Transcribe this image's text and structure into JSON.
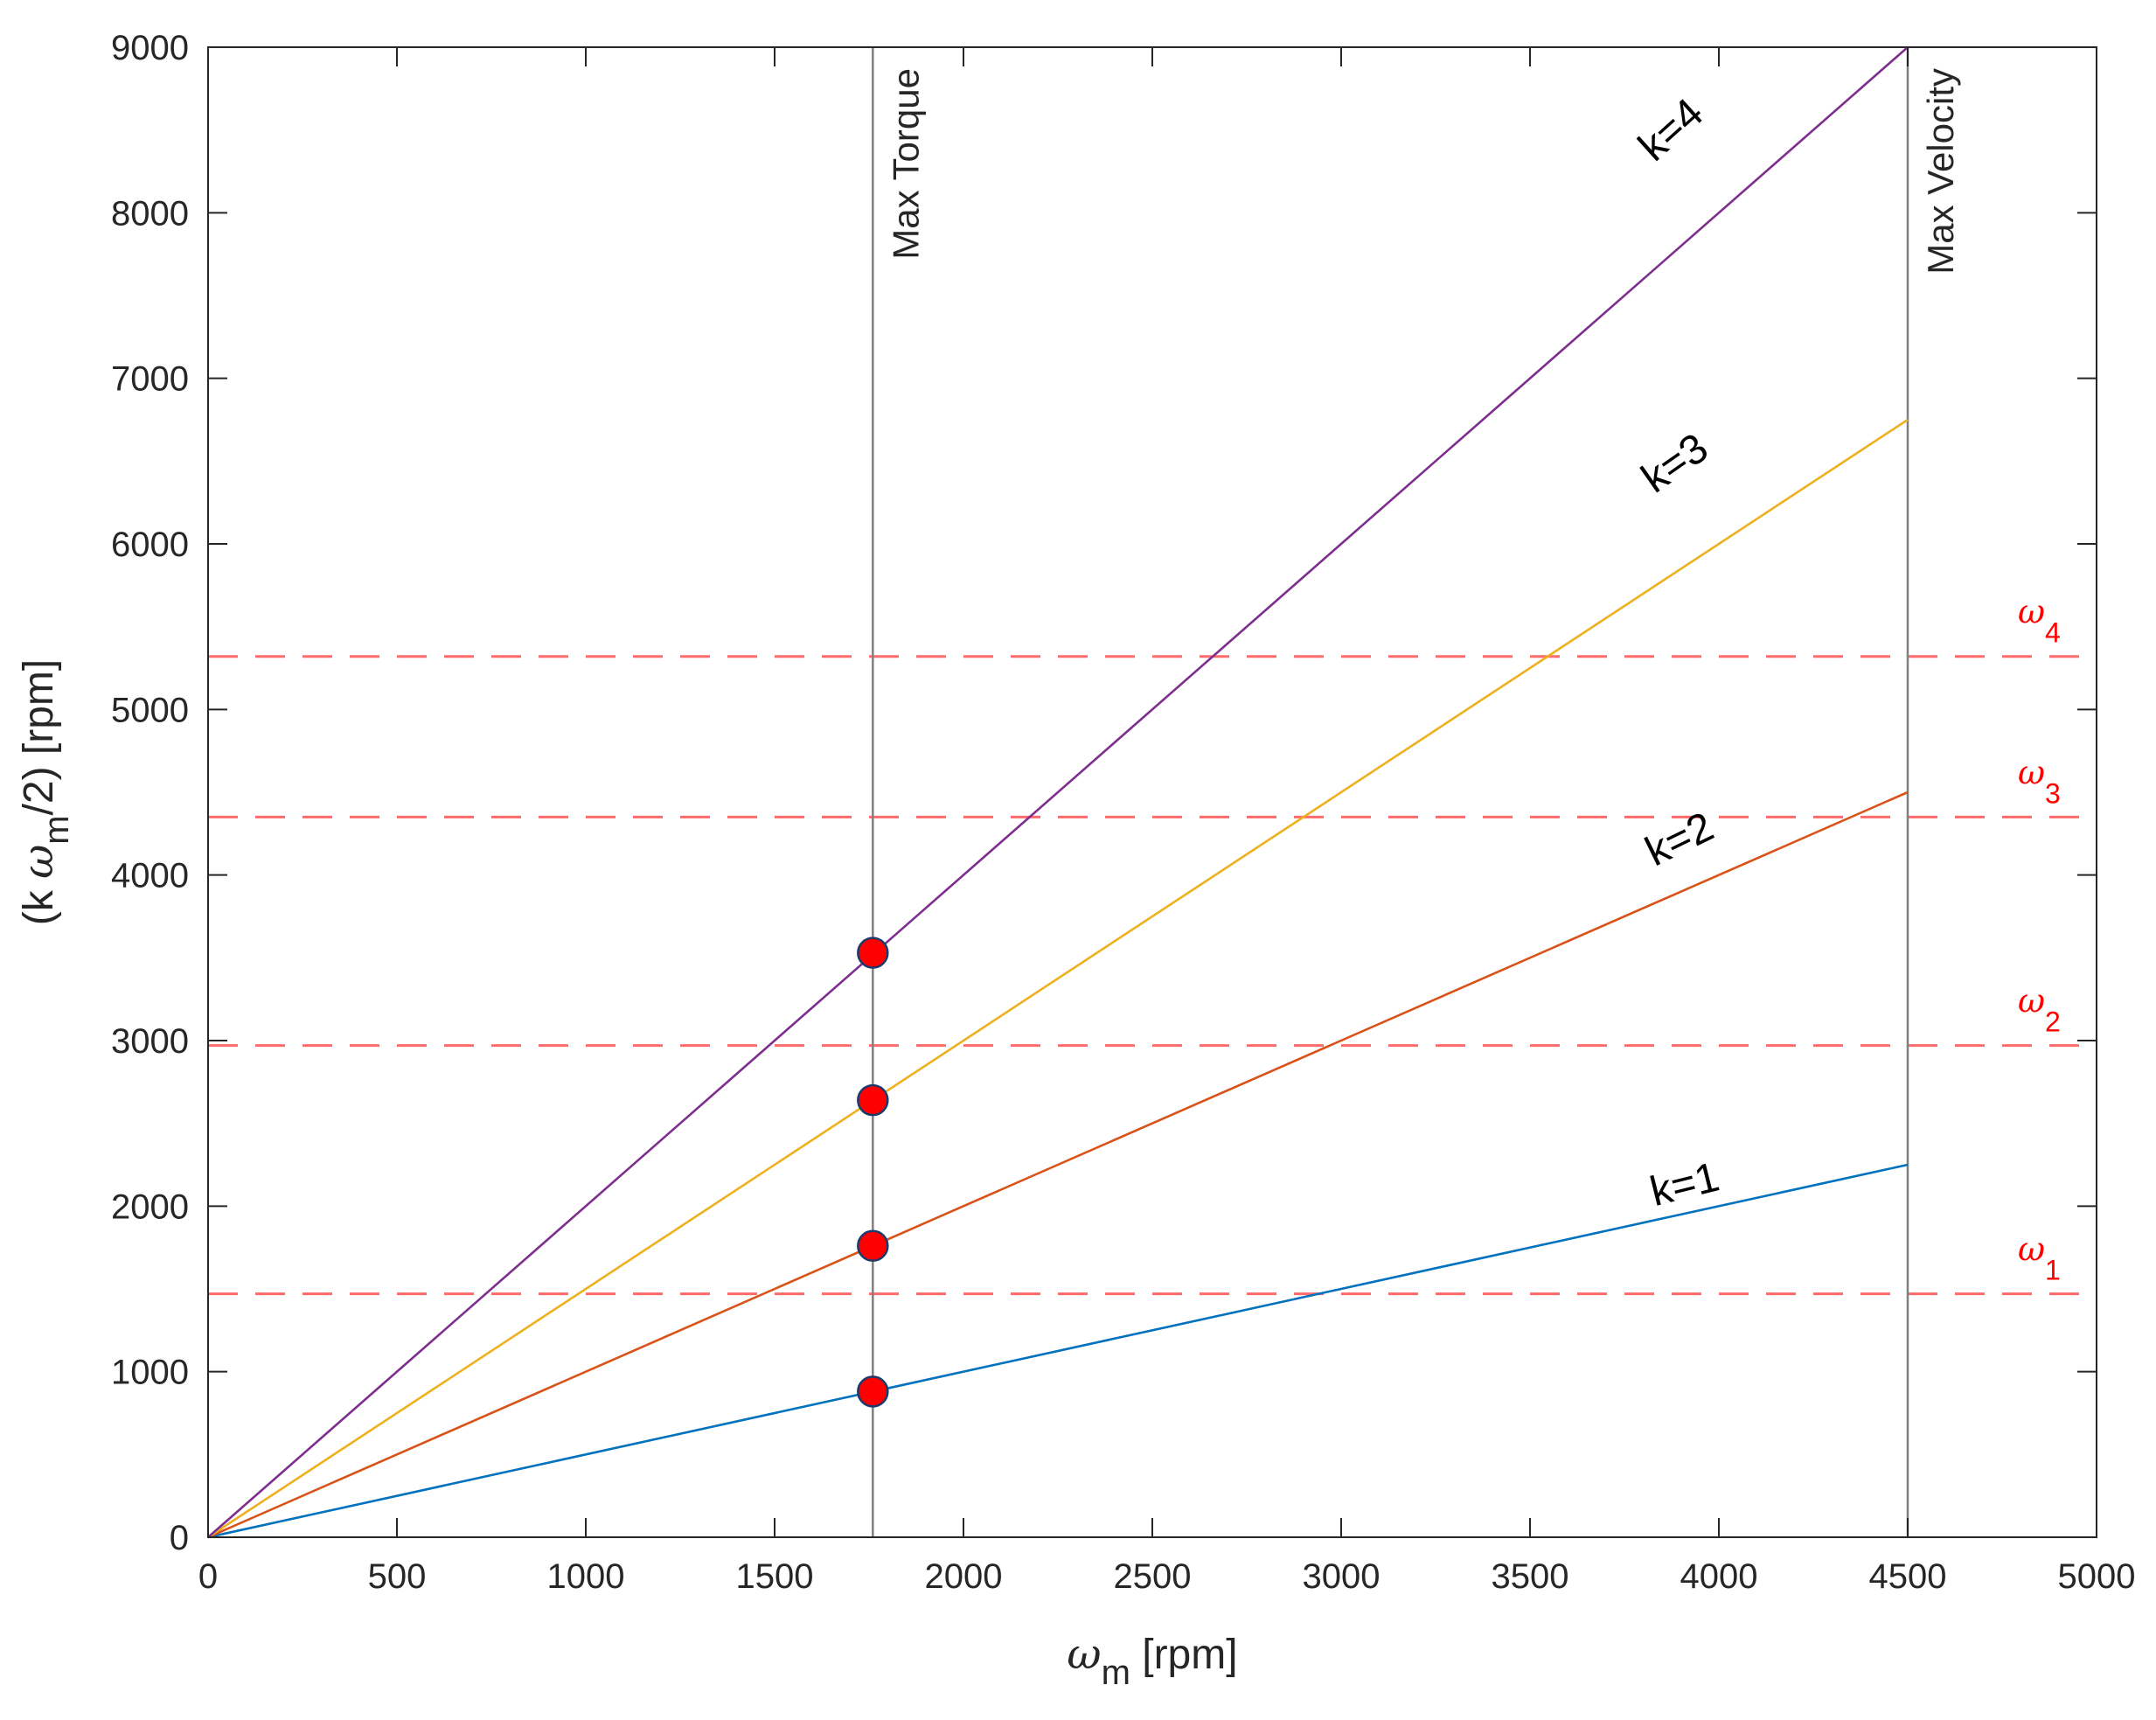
{
  "chart_data": {
    "type": "line",
    "title": "",
    "xlabel": {
      "symbol": "ω",
      "sub": "m",
      "unit": " [rpm]"
    },
    "ylabel": {
      "pre": "(k ",
      "symbol": "ω",
      "sub": "m",
      "post": "/2) [rpm]"
    },
    "xlim": [
      0,
      5000
    ],
    "ylim": [
      0,
      9000
    ],
    "xticks": [
      0,
      500,
      1000,
      1500,
      2000,
      2500,
      3000,
      3500,
      4000,
      4500,
      5000
    ],
    "yticks": [
      0,
      1000,
      2000,
      3000,
      4000,
      5000,
      6000,
      7000,
      8000,
      9000
    ],
    "grid": false,
    "series": [
      {
        "name": "k=1",
        "color": "#0072BD",
        "x": [
          0,
          4500
        ],
        "y": [
          0,
          2250
        ]
      },
      {
        "name": "k=2",
        "color": "#D95319",
        "x": [
          0,
          4500
        ],
        "y": [
          0,
          4500
        ]
      },
      {
        "name": "k=3",
        "color": "#EDB120",
        "x": [
          0,
          4500
        ],
        "y": [
          0,
          6750
        ]
      },
      {
        "name": "k=4",
        "color": "#7E2F8E",
        "x": [
          0,
          4500
        ],
        "y": [
          0,
          9000
        ]
      }
    ],
    "vertical_lines": [
      {
        "x": 1760,
        "label": "Max Torque",
        "color": "#808080"
      },
      {
        "x": 4500,
        "label": "Max Velocity",
        "color": "#808080"
      }
    ],
    "horizontal_lines": [
      {
        "y": 1470,
        "symbol": "ω",
        "sub": "1",
        "color": "#ff6b6b"
      },
      {
        "y": 2970,
        "symbol": "ω",
        "sub": "2",
        "color": "#ff6b6b"
      },
      {
        "y": 4350,
        "symbol": "ω",
        "sub": "3",
        "color": "#ff6b6b"
      },
      {
        "y": 5320,
        "symbol": "ω",
        "sub": "4",
        "color": "#ff6b6b"
      }
    ],
    "points": [
      {
        "x": 1760,
        "y": 880
      },
      {
        "x": 1760,
        "y": 1760
      },
      {
        "x": 1760,
        "y": 2640
      },
      {
        "x": 1760,
        "y": 3530
      }
    ],
    "point_color": "#ff0000",
    "annotations": [
      {
        "text": "k=1",
        "x": 3830,
        "y": 2000
      },
      {
        "text": "k=2",
        "x": 3830,
        "y": 4050
      },
      {
        "text": "k=3",
        "x": 3830,
        "y": 6300
      },
      {
        "text": "k=4",
        "x": 3830,
        "y": 8300
      }
    ]
  }
}
